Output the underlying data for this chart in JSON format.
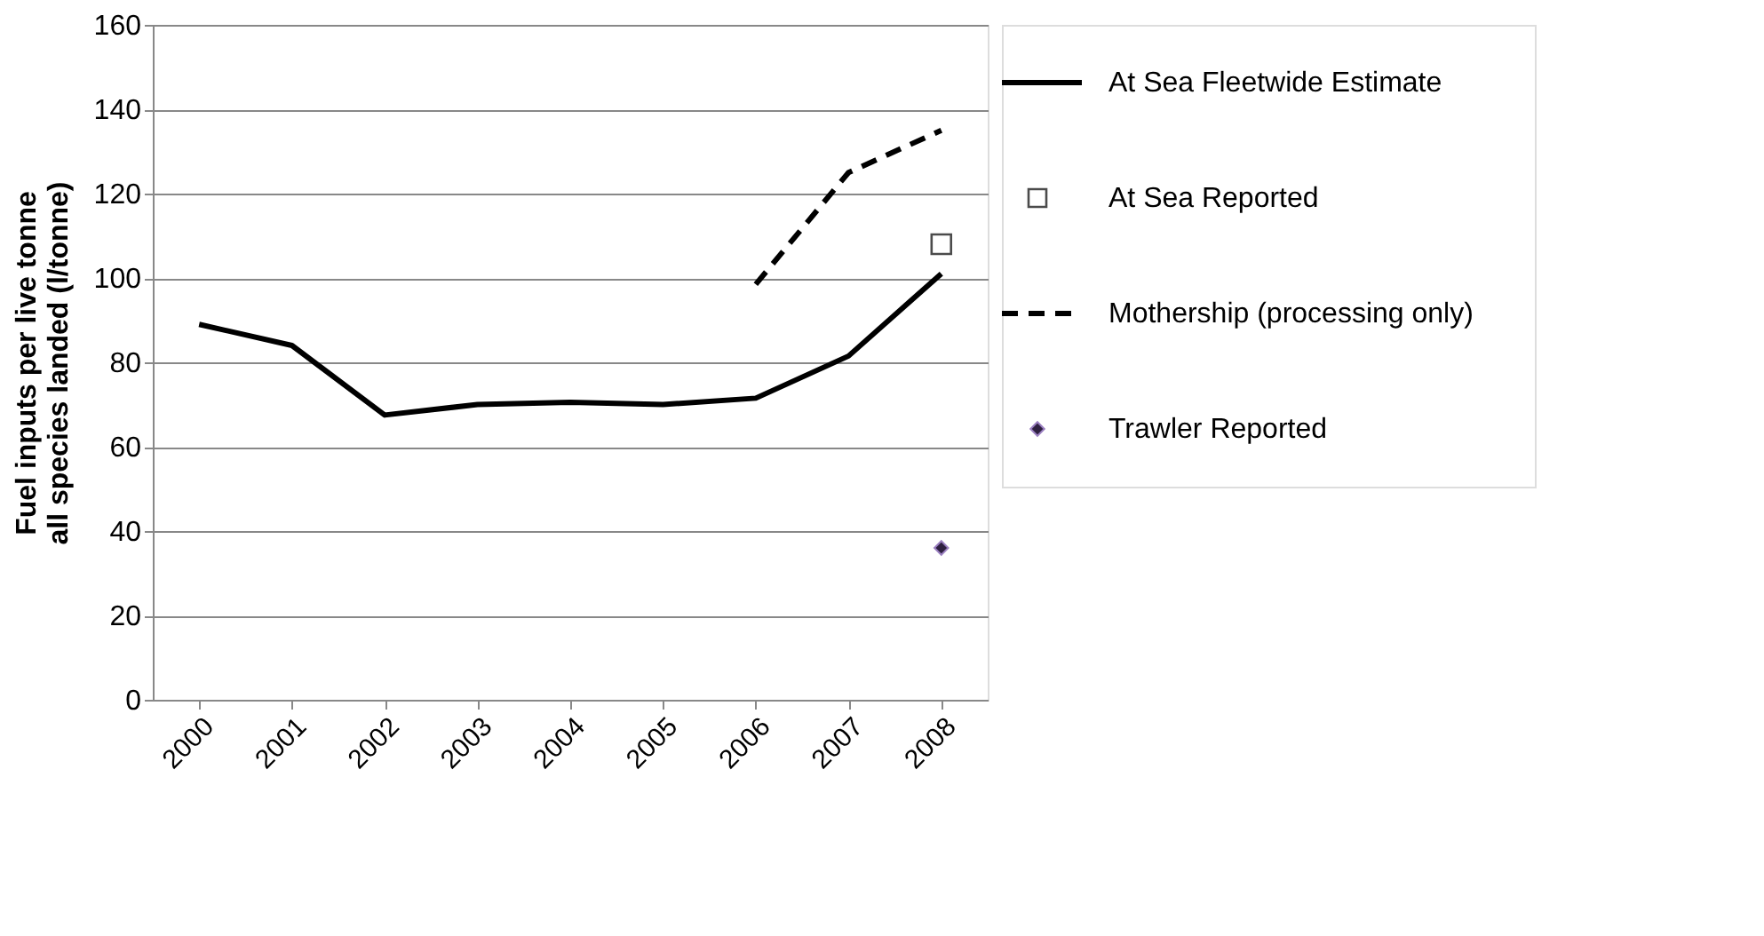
{
  "chart_data": {
    "type": "line",
    "ylabel": "Fuel inputs per live tonne\nall species landed (l/tonne)",
    "categories": [
      "2000",
      "2001",
      "2002",
      "2003",
      "2004",
      "2005",
      "2006",
      "2007",
      "2008"
    ],
    "ylim": [
      0,
      160
    ],
    "yticks": [
      0,
      20,
      40,
      60,
      80,
      100,
      120,
      140,
      160
    ],
    "grid": "y",
    "legend": "right",
    "series": [
      {
        "name": "At Sea Fleetwide Estimate",
        "color": "#000000",
        "line_style": "solid",
        "values": [
          89,
          84,
          67.5,
          70,
          70.5,
          70,
          71.5,
          81.5,
          101
        ]
      },
      {
        "name": "At Sea Reported",
        "type": "scatter",
        "marker": "square",
        "color": "#000000",
        "values": [
          null,
          null,
          null,
          null,
          null,
          null,
          null,
          null,
          108
        ]
      },
      {
        "name": "Mothership (processing only)",
        "color": "#000000",
        "line_style": "dashed",
        "values": [
          null,
          null,
          null,
          null,
          null,
          null,
          98.5,
          125,
          135
        ]
      },
      {
        "name": "Trawler Reported",
        "type": "scatter",
        "marker": "diamond",
        "color": "#2e2040",
        "values": [
          null,
          null,
          null,
          null,
          null,
          null,
          null,
          null,
          36
        ]
      }
    ]
  }
}
